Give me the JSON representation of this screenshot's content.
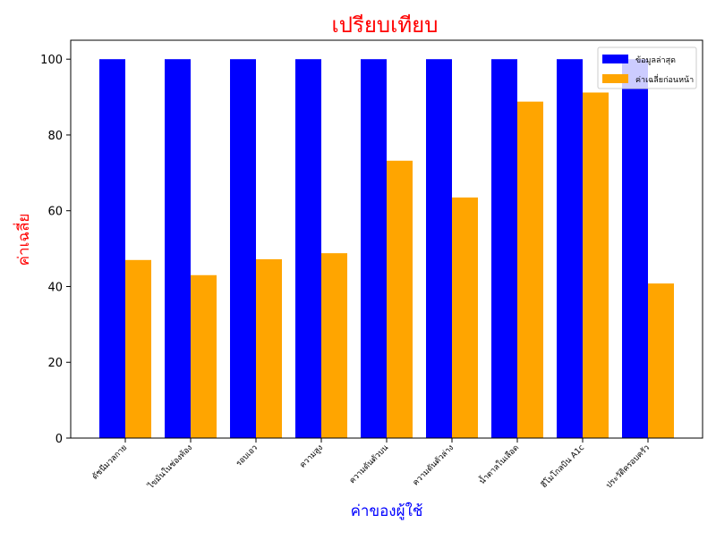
{
  "chart_data": {
    "type": "bar",
    "title": "เปรียบเทียบ",
    "xlabel": "ค่าของผู้ใช้",
    "ylabel": "ค่าเฉลี่ย",
    "title_color": "#ff0000",
    "xlabel_color": "#0000ff",
    "ylabel_color": "#ff0000",
    "categories": [
      "ดัชนีมวลกาย",
      "ไขมันในช่องท้อง",
      "รอบเอว",
      "ความสูง",
      "ความดันตัวบน",
      "ความดันตัวล่าง",
      "น้ำตาลในเลือด",
      "ฮีโมโกลบิน A1c",
      "ประวัติครอบครัว"
    ],
    "series": [
      {
        "name": "ข้อมูลล่าสุด",
        "color": "#0000ff",
        "values": [
          100,
          100,
          100,
          100,
          100,
          100,
          100,
          100,
          100
        ]
      },
      {
        "name": "ค่าเฉลี่ยก่อนหน้า",
        "color": "#ffa500",
        "values": [
          47,
          43,
          47.2,
          48.8,
          73.2,
          63.5,
          88.8,
          91.2,
          40.8
        ]
      }
    ],
    "ylim": [
      0,
      105
    ],
    "yticks": [
      0,
      20,
      40,
      60,
      80,
      100
    ],
    "grid": false,
    "legend_position": "top-right"
  }
}
